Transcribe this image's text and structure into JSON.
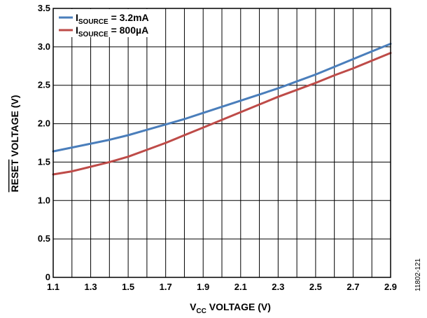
{
  "figure_id": "11802-121",
  "chart_data": {
    "type": "line",
    "xlabel": {
      "prefix": "V",
      "sub": "CC",
      "suffix": " VOLTAGE (V)"
    },
    "ylabel": {
      "overline": "RESET",
      "suffix": " VOLTAGE (V)"
    },
    "xlim": [
      1.1,
      2.9
    ],
    "ylim": [
      0,
      3.5
    ],
    "x_ticks": [
      "1.1",
      "1.3",
      "1.5",
      "1.7",
      "1.9",
      "2.1",
      "2.3",
      "2.5",
      "2.7",
      "2.9"
    ],
    "y_ticks": [
      "0",
      "0.5",
      "1.0",
      "1.5",
      "2.0",
      "2.5",
      "3.0",
      "3.5"
    ],
    "grid": true,
    "legend_position": "top-left",
    "series": [
      {
        "name": {
          "prefix": "I",
          "sub": "SOURCE",
          "suffix": " = 3.2mA"
        },
        "color": "#4a7ebb",
        "x": [
          1.1,
          1.2,
          1.3,
          1.4,
          1.5,
          1.6,
          1.7,
          1.8,
          1.9,
          2.0,
          2.1,
          2.2,
          2.3,
          2.4,
          2.5,
          2.6,
          2.7,
          2.8,
          2.9
        ],
        "y": [
          1.64,
          1.69,
          1.74,
          1.79,
          1.85,
          1.92,
          1.99,
          2.06,
          2.14,
          2.22,
          2.3,
          2.38,
          2.46,
          2.55,
          2.64,
          2.74,
          2.84,
          2.94,
          3.04
        ]
      },
      {
        "name": {
          "prefix": "I",
          "sub": "SOURCE",
          "suffix": " = 800µA"
        },
        "color": "#be4b48",
        "x": [
          1.1,
          1.2,
          1.3,
          1.4,
          1.5,
          1.6,
          1.7,
          1.8,
          1.9,
          2.0,
          2.1,
          2.2,
          2.3,
          2.4,
          2.5,
          2.6,
          2.7,
          2.8,
          2.9
        ],
        "y": [
          1.34,
          1.38,
          1.44,
          1.5,
          1.57,
          1.66,
          1.75,
          1.85,
          1.95,
          2.05,
          2.15,
          2.25,
          2.35,
          2.44,
          2.53,
          2.63,
          2.72,
          2.82,
          2.92
        ]
      }
    ]
  }
}
